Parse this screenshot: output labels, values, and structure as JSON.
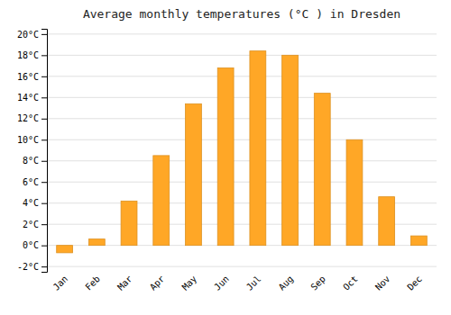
{
  "chart_data": {
    "type": "bar",
    "title": "Average monthly temperatures (°C ) in Dresden",
    "categories": [
      "Jan",
      "Feb",
      "Mar",
      "Apr",
      "May",
      "Jun",
      "Jul",
      "Aug",
      "Sep",
      "Oct",
      "Nov",
      "Dec"
    ],
    "values": [
      -0.7,
      0.6,
      4.2,
      8.5,
      13.4,
      16.8,
      18.4,
      18.0,
      14.4,
      10.0,
      4.6,
      0.9
    ],
    "color": "#FFA726",
    "ylim": [
      -2.5,
      20.5
    ],
    "yticks": [
      {
        "value": -2,
        "label": "-2°C"
      },
      {
        "value": 0,
        "label": "0°C"
      },
      {
        "value": 2,
        "label": "2°C"
      },
      {
        "value": 4,
        "label": "4°C"
      },
      {
        "value": 6,
        "label": "6°C"
      },
      {
        "value": 8,
        "label": "8°C"
      },
      {
        "value": 10,
        "label": "10°C"
      },
      {
        "value": 12,
        "label": "12°C"
      },
      {
        "value": 14,
        "label": "14°C"
      },
      {
        "value": 16,
        "label": "16°C"
      },
      {
        "value": 18,
        "label": "18°C"
      },
      {
        "value": 20,
        "label": "20°C"
      }
    ],
    "grid": true
  }
}
